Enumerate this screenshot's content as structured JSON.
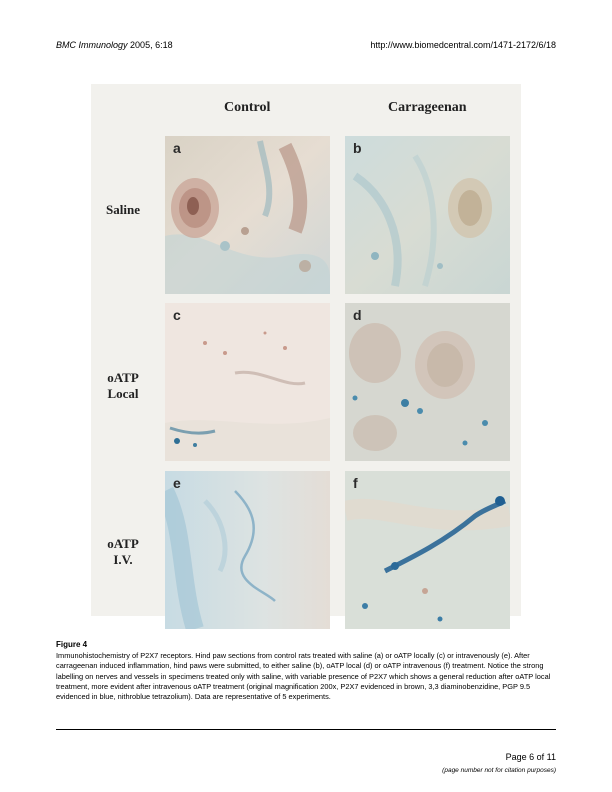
{
  "header": {
    "journal": "BMC Immunology",
    "citation": "2005, 6:18",
    "url": "http://www.biomedcentral.com/1471-2172/6/18"
  },
  "figure": {
    "columns": [
      "Control",
      "Carrageenan"
    ],
    "rows": [
      {
        "label_line1": "Saline",
        "label_line2": ""
      },
      {
        "label_line1": "oATP",
        "label_line2": "Local"
      },
      {
        "label_line1": "oATP",
        "label_line2": "I.V."
      }
    ],
    "panels": [
      "a",
      "b",
      "c",
      "d",
      "e",
      "f"
    ]
  },
  "caption": {
    "title": "Figure 4",
    "text": "Immunohistochemistry of P2X7 receptors. Hind paw sections from control rats treated with saline (a) or oATP locally (c) or intravenously (e). After carrageenan induced inflammation, hind paws were submitted, to either saline (b), oATP local (d) or oATP intravenous (f) treatment. Notice the strong labelling on nerves and vessels in specimens treated only with saline, with variable presence of P2X7 which shows a general reduction after oATP local treatment, more evident after intravenous oATP treatment (original magnification 200x, P2X7 evidenced in brown, 3,3 diaminobenzidine, PGP 9.5 evidenced in blue, nithroblue tetrazolium). Data are representative of 5 experiments."
  },
  "footer": {
    "page": "Page 6 of 11",
    "note": "(page number not for citation purposes)"
  }
}
